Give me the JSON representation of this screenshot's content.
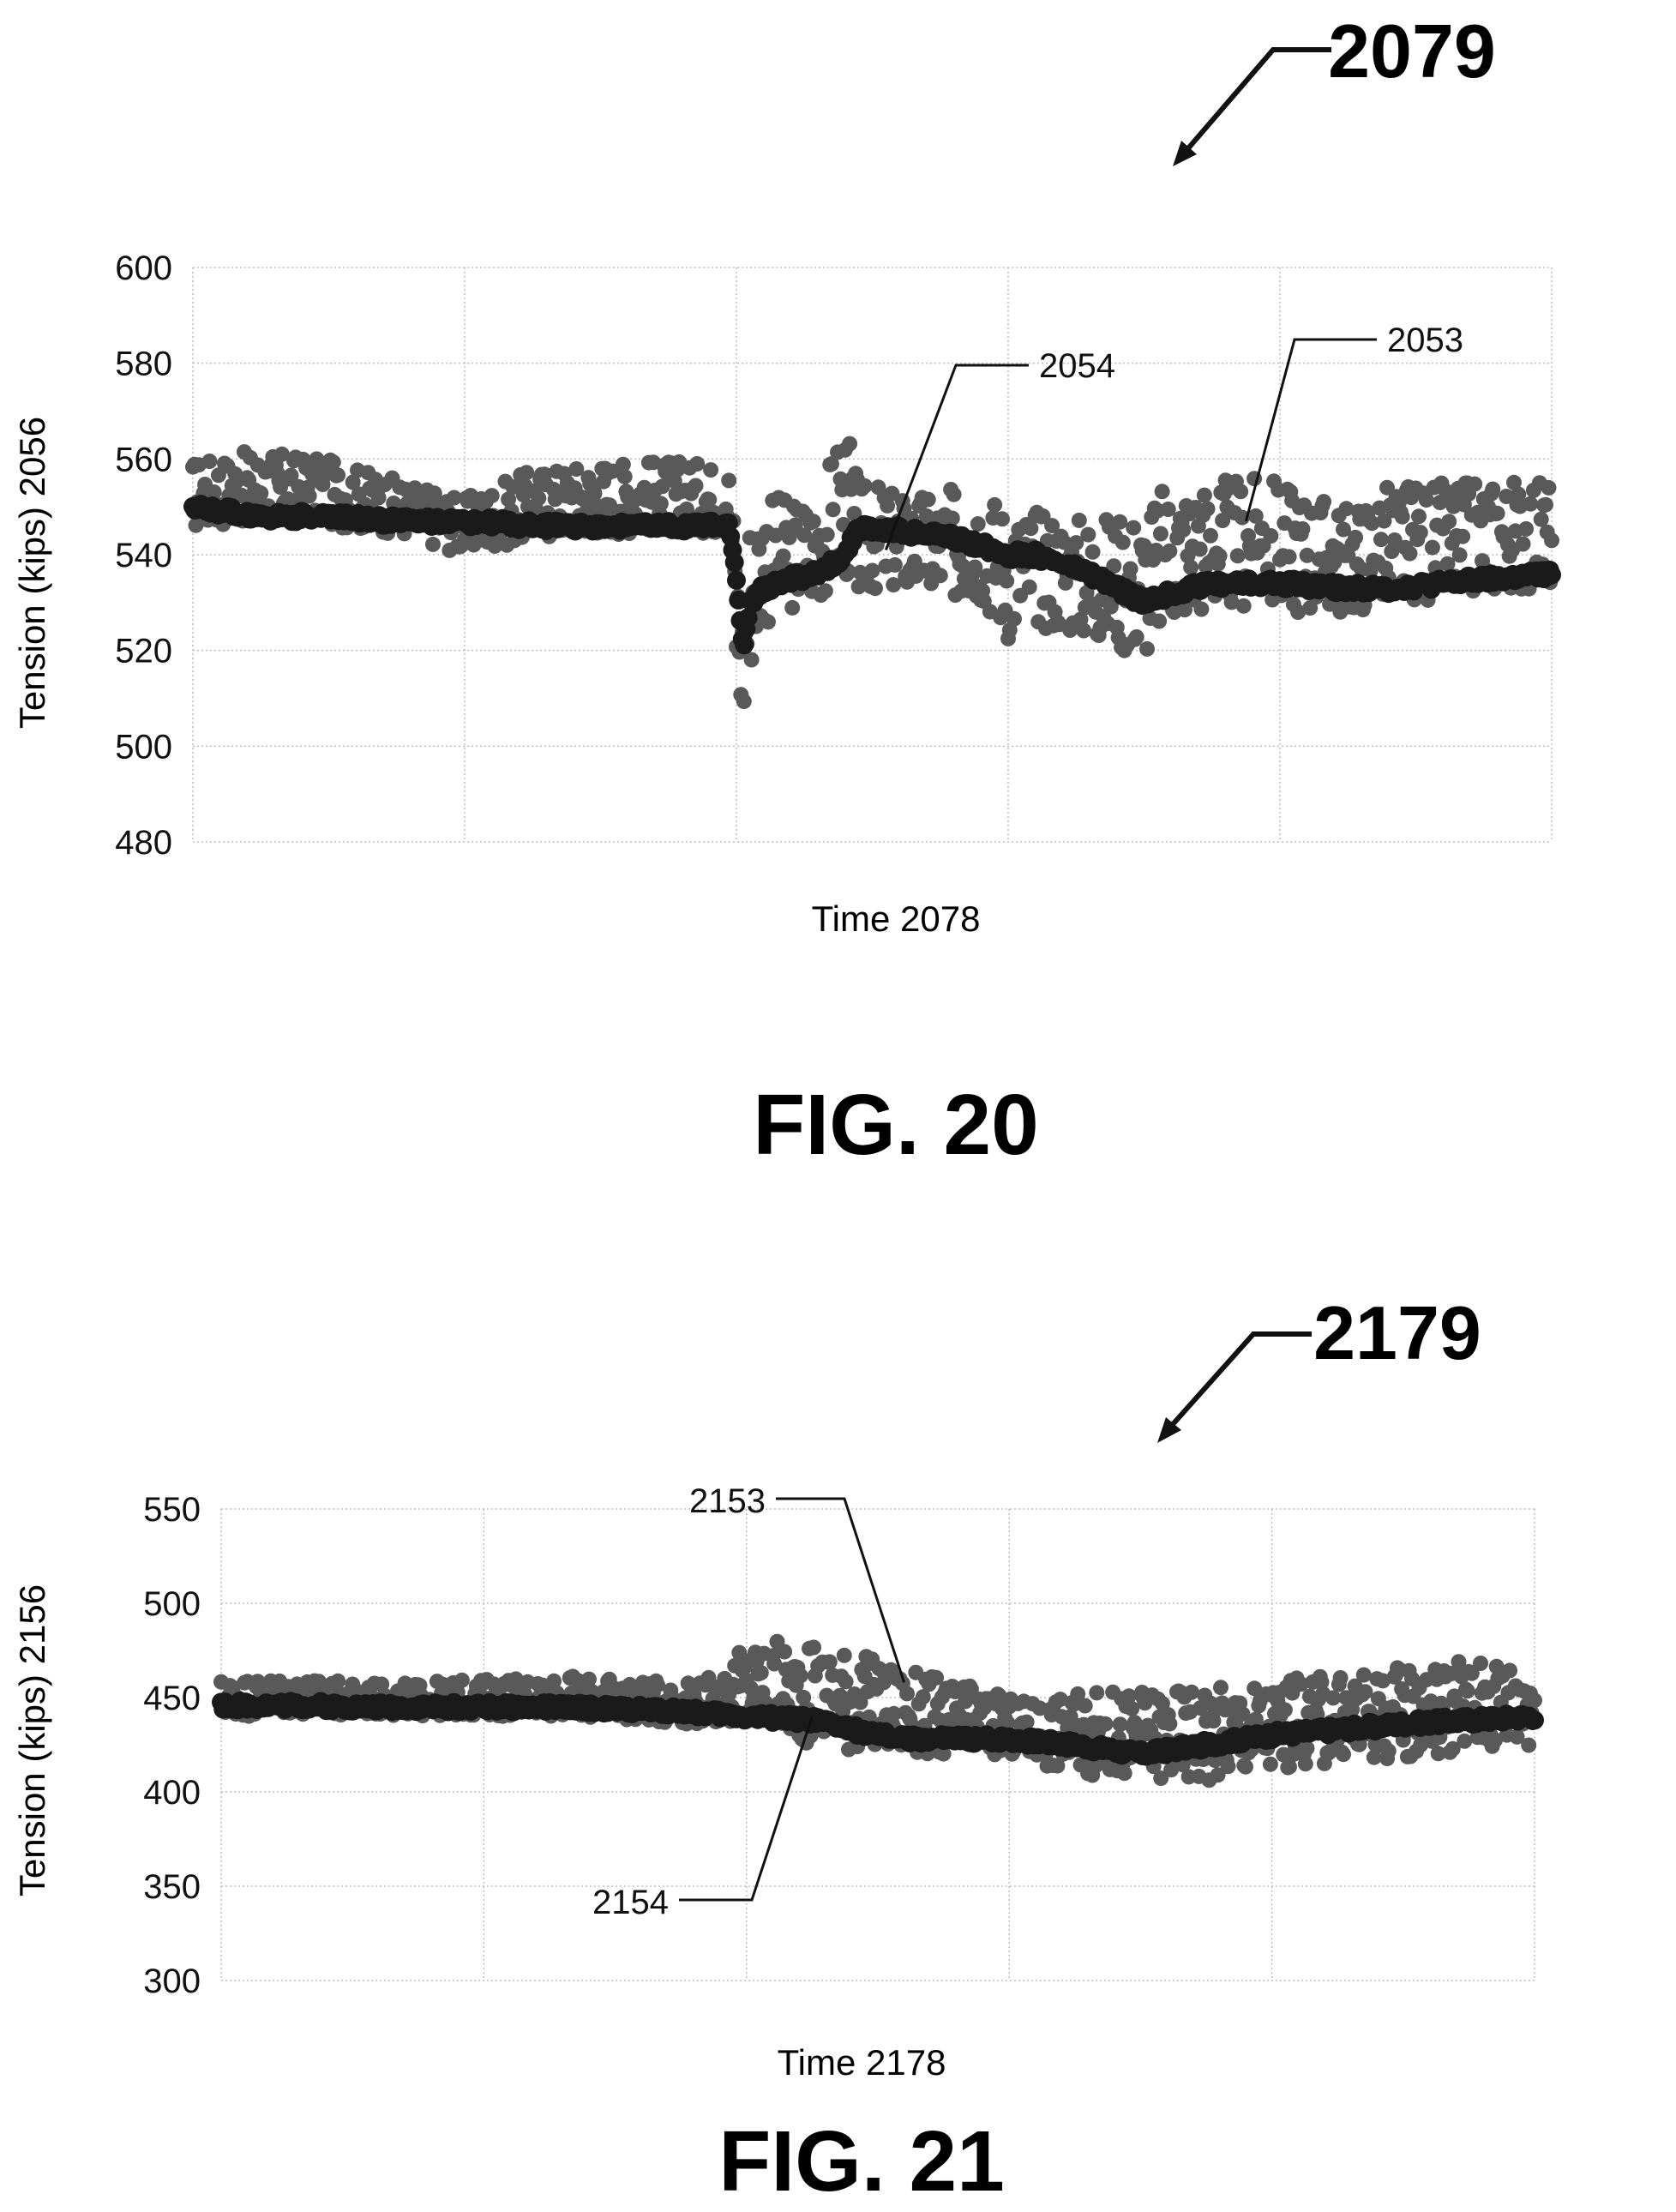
{
  "figures": [
    {
      "ref_label": "2079",
      "caption": "FIG. 20",
      "xlabel": "Time  2078",
      "ylabel": "Tension (kips)  2056",
      "chart_data": {
        "type": "scatter",
        "title": "",
        "xlabel": "Time  2078",
        "ylabel": "Tension (kips)  2056",
        "ylim": [
          480,
          600
        ],
        "yticks": [
          480,
          500,
          520,
          540,
          560,
          580,
          600
        ],
        "xlim": [
          0,
          100
        ],
        "x_gridlines": [
          0,
          20,
          40,
          60,
          80,
          100
        ],
        "grid": true,
        "legend": "none",
        "series": [
          {
            "ref": "2053",
            "color": "#595959",
            "x": [
              0,
              5,
              10,
              15,
              20,
              25,
              30,
              35,
              39.5,
              40,
              40.5,
              41,
              42,
              44,
              46,
              48,
              49,
              50,
              52,
              55,
              58,
              60,
              62,
              66,
              70,
              72,
              75,
              80,
              85,
              88,
              92,
              96,
              100
            ],
            "y": [
              553,
              558,
              557,
              550,
              545,
              551,
              553,
              554,
              553,
              540,
              506,
              525,
              545,
              540,
              545,
              560,
              542,
              546,
              541,
              545,
              548,
              530,
              540,
              535,
              525,
              540,
              548,
              545,
              535,
              548,
              545,
              548,
              545
            ],
            "y_low": [
              545,
              547,
              546,
              544,
              540,
              543,
              544,
              545,
              544,
              510,
              502,
              515,
              525,
              528,
              530,
              535,
              530,
              532,
              532,
              530,
              530,
              522,
              525,
              522,
              518,
              525,
              528,
              528,
              527,
              530,
              530,
              532,
              533
            ],
            "y_high": [
              560,
              562,
              560,
              556,
              552,
              558,
              560,
              560,
              559,
              545,
              530,
              550,
              553,
              552,
              553,
              569,
              555,
              555,
              553,
              553,
              556,
              550,
              550,
              548,
              550,
              556,
              556,
              556,
              550,
              555,
              555,
              556,
              556
            ]
          },
          {
            "ref": "2054",
            "color": "#1a1a1a",
            "x": [
              0,
              5,
              10,
              15,
              20,
              25,
              30,
              35,
              39.5,
              40,
              40.5,
              41,
              42,
              44,
              46,
              48,
              49,
              50,
              52,
              55,
              58,
              60,
              62,
              66,
              70,
              72,
              75,
              80,
              85,
              88,
              92,
              96,
              100
            ],
            "y": [
              550,
              548,
              548,
              547,
              547,
              546,
              546,
              546,
              546,
              535,
              520,
              530,
              533,
              535,
              536,
              540,
              546,
              545,
              545,
              544,
              542,
              540,
              540,
              536,
              530,
              532,
              534,
              534,
              533,
              533,
              534,
              535,
              536
            ]
          }
        ],
        "annotations": [
          {
            "label": "2054",
            "target": [
              51,
              541
            ]
          },
          {
            "label": "2053",
            "target": [
              77.5,
              547
            ]
          }
        ]
      }
    },
    {
      "ref_label": "2179",
      "caption": "FIG. 21",
      "xlabel": "Time  2178",
      "ylabel": "Tension (kips)  2156",
      "chart_data": {
        "type": "scatter",
        "title": "",
        "xlabel": "Time  2178",
        "ylabel": "Tension (kips)  2156",
        "ylim": [
          300,
          550
        ],
        "yticks": [
          300,
          350,
          400,
          450,
          500,
          550
        ],
        "xlim": [
          0,
          100
        ],
        "x_gridlines": [
          0,
          20,
          40,
          60,
          80,
          100
        ],
        "grid": true,
        "legend": "none",
        "series": [
          {
            "ref": "2153",
            "color": "#595959",
            "x": [
              0,
              5,
              10,
              15,
              20,
              25,
              30,
              35,
              38,
              40,
              42,
              45,
              48,
              50,
              52,
              55,
              58,
              60,
              62,
              65,
              70,
              75,
              80,
              85,
              90,
              95,
              100
            ],
            "y": [
              448,
              452,
              450,
              450,
              452,
              453,
              450,
              448,
              450,
              460,
              465,
              465,
              460,
              455,
              450,
              445,
              440,
              435,
              432,
              430,
              428,
              430,
              432,
              435,
              440,
              445,
              448
            ],
            "y_low": [
              440,
              440,
              440,
              440,
              440,
              440,
              438,
              436,
              436,
              435,
              430,
              425,
              422,
              420,
              420,
              418,
              418,
              418,
              415,
              410,
              405,
              405,
              410,
              415,
              418,
              420,
              425
            ],
            "y_high": [
              460,
              462,
              458,
              458,
              460,
              462,
              460,
              458,
              462,
              480,
              480,
              478,
              478,
              470,
              465,
              460,
              455,
              450,
              450,
              452,
              455,
              458,
              460,
              462,
              468,
              472,
              475
            ]
          },
          {
            "ref": "2154",
            "color": "#1a1a1a",
            "x": [
              0,
              5,
              10,
              15,
              20,
              25,
              30,
              35,
              40,
              45,
              50,
              52,
              55,
              58,
              60,
              65,
              70,
              75,
              80,
              85,
              90,
              95,
              100
            ],
            "y": [
              446,
              446,
              445,
              445,
              445,
              445,
              444,
              443,
              440,
              438,
              430,
              428,
              428,
              428,
              428,
              425,
              420,
              425,
              430,
              433,
              436,
              438,
              440
            ]
          }
        ],
        "annotations": [
          {
            "label": "2153",
            "target": [
              52,
              458
            ]
          },
          {
            "label": "2154",
            "target": [
              45,
              440
            ]
          }
        ]
      }
    }
  ]
}
